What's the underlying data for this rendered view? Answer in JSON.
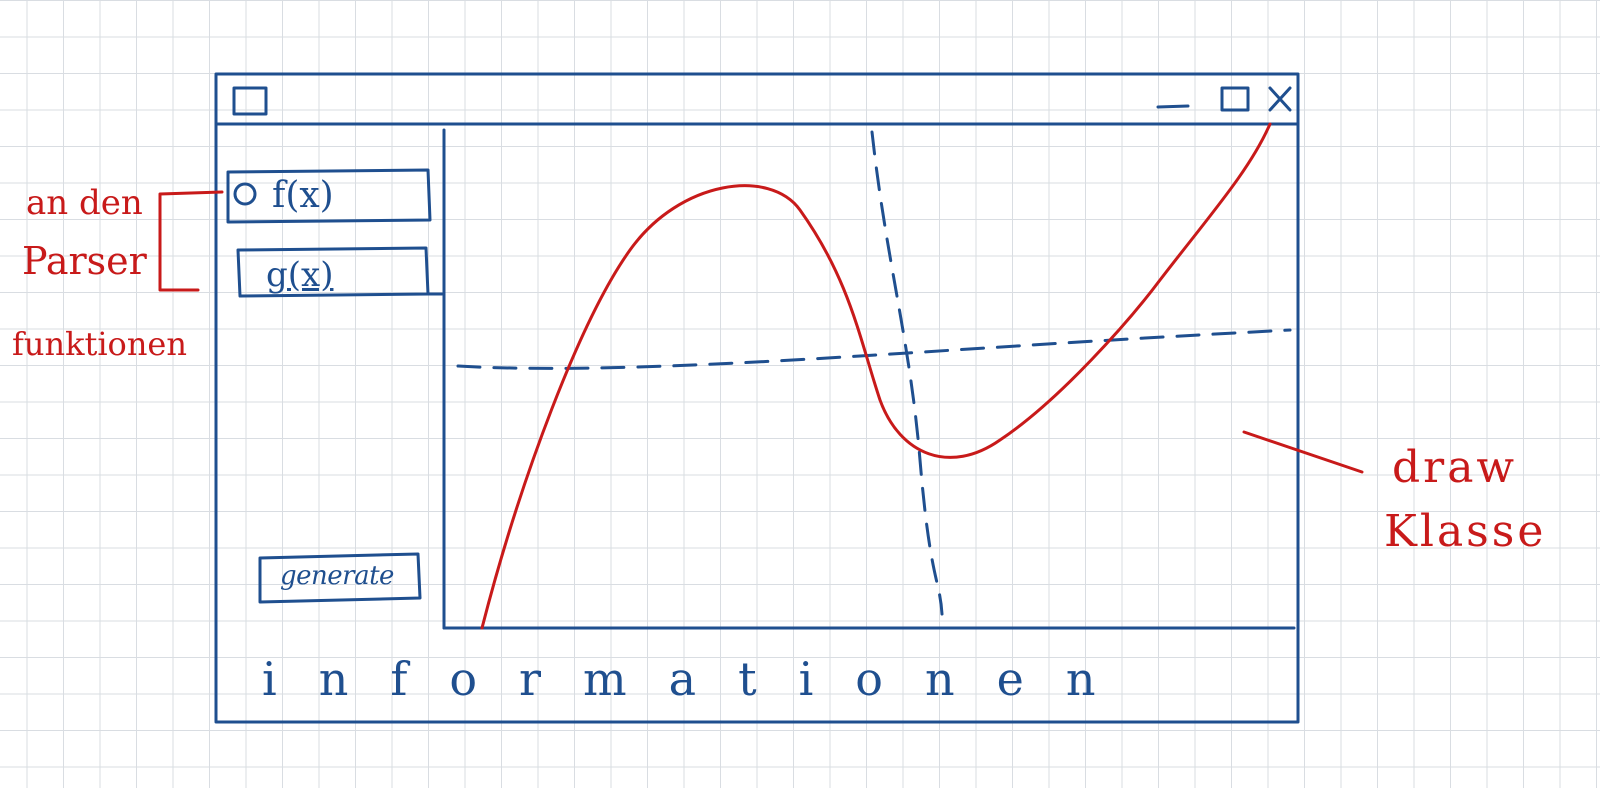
{
  "sidebar": {
    "f_label": "f(x)",
    "g_label": "g(x)",
    "generate_label": "generate"
  },
  "footer": {
    "info": "informationen"
  },
  "annotations": {
    "parser_line1": "an den",
    "parser_line2": "Parser",
    "parser_line3": "funktionen",
    "draw_line1": "draw",
    "draw_line2": "Klasse"
  },
  "colors": {
    "wireframe_ink": "#1f4f8f",
    "annotation_ink": "#c81a1a",
    "grid": "#d9dde2"
  },
  "icons": {
    "app": "app-icon-square",
    "minimize": "minimize-icon",
    "maximize": "maximize-icon",
    "close": "close-icon",
    "radio": "radio-circle-icon"
  }
}
